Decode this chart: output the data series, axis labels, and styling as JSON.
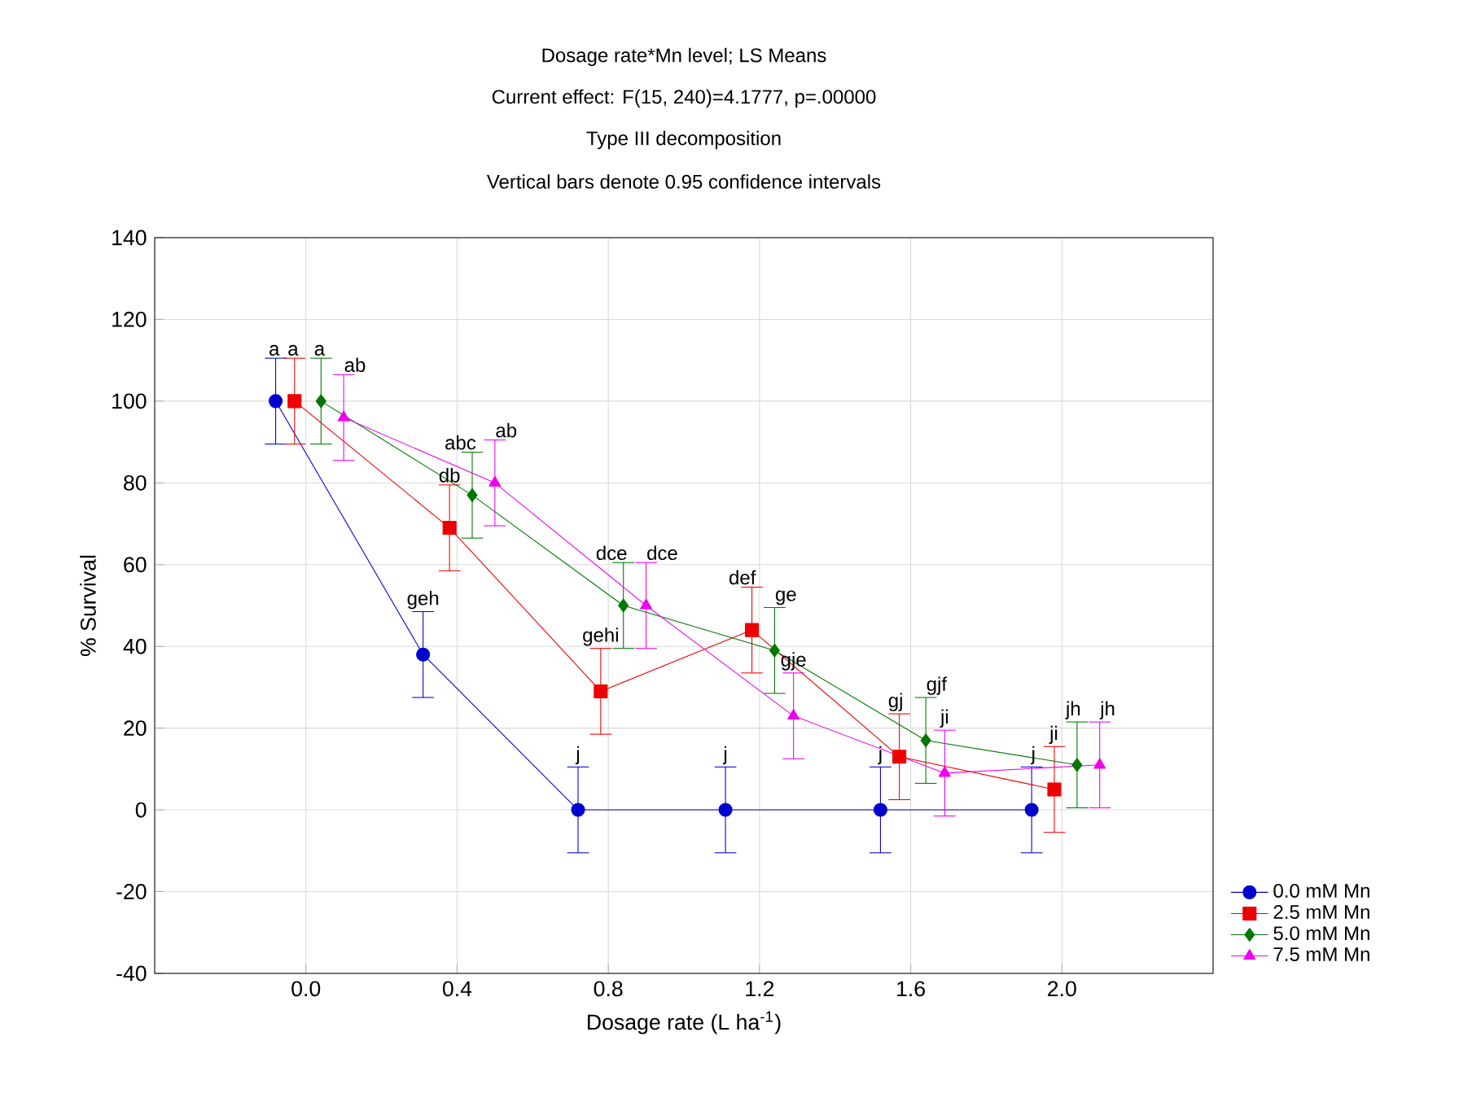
{
  "chart_data": {
    "type": "line",
    "title": "Dosage rate*Mn level; LS Means",
    "subtitle": "Current effect: F(15, 240)=4.1777, p=.00000",
    "xlabel": "Dosage rate (L ha$^{-1}$)",
    "ylabel": "% Survival",
    "xlim": [
      -0.4,
      2.4
    ],
    "xticks": [
      {
        "value": 0,
        "label": "0.0"
      },
      0.4,
      0.8,
      1.2,
      1.6,
      {
        "value": 2,
        "label": "2.0"
      }
    ],
    "ylim": [
      -40,
      140
    ],
    "yticks": [
      -40,
      -20,
      0,
      20,
      40,
      60,
      80,
      100,
      120,
      140
    ],
    "grid": true,
    "legend": "bottom right",
    "series": [
      {
        "name": "0.0 mM Mn",
        "color": "#0000cc",
        "marker": "circle",
        "x": [
          -0.08,
          0.31,
          0.72,
          1.11,
          1.52,
          1.92
        ],
        "values": [
          100,
          38,
          0,
          0,
          0,
          0
        ],
        "errors": [
          10.5,
          10.5,
          10.5,
          10.5,
          10.5,
          10.5
        ]
      },
      {
        "name": "2.5 mM Mn",
        "color": "#ee0000",
        "marker": "square",
        "x": [
          -0.03,
          0.38,
          0.78,
          1.18,
          1.57,
          1.98
        ],
        "values": [
          100,
          69,
          29,
          44,
          13,
          5
        ],
        "errors": [
          10.5,
          10.5,
          10.5,
          10.5,
          10.5,
          10.5
        ]
      },
      {
        "name": "5.0 mM Mn",
        "color": "#007700",
        "marker": "diamond",
        "x": [
          0.04,
          0.44,
          0.84,
          1.24,
          1.64,
          2.04
        ],
        "values": [
          100,
          77,
          50,
          39,
          17,
          11
        ],
        "errors": [
          10.5,
          10.5,
          10.5,
          10.5,
          10.5,
          10.5
        ]
      },
      {
        "name": "7.5 mM Mn",
        "color": "#ee00ee",
        "marker": "triangle",
        "x": [
          0.1,
          0.5,
          0.9,
          1.29,
          1.69,
          2.1
        ],
        "values": [
          96,
          80,
          50,
          23,
          9,
          11
        ],
        "errors": [
          10.5,
          10.5,
          10.5,
          10.5,
          10.5,
          10.5
        ]
      }
    ],
    "annotations": [
      "Type III decomposition",
      "Vertical bars denote 0.95 confidence intervals",
      {
        "text": "a",
        "x": -0.08,
        "y": 110.5
      },
      {
        "text": "geh",
        "x": 0.31,
        "y": 48.5
      },
      {
        "text": "j",
        "x": 0.72,
        "y": 10.5
      },
      {
        "text": "j",
        "x": 1.11,
        "y": 10.5
      },
      {
        "text": "j",
        "x": 1.52,
        "y": 10.5
      },
      {
        "text": "j",
        "x": 1.92,
        "y": 10.5
      },
      {
        "text": "a",
        "x": -0.03,
        "y": 110.5
      },
      {
        "text": "db",
        "x": 0.38,
        "y": 79.5
      },
      {
        "text": "gehi",
        "x": 0.78,
        "y": 39.5
      },
      {
        "text": "def",
        "x": 1.18,
        "y": 54.5
      },
      {
        "text": "gj",
        "x": 1.57,
        "y": 23.5
      },
      {
        "text": "ji",
        "x": 1.98,
        "y": 15.5
      },
      {
        "text": "a",
        "x": 0.04,
        "y": 110.5
      },
      {
        "text": "abc",
        "x": 0.44,
        "y": 87.5
      },
      {
        "text": "dce",
        "x": 0.84,
        "y": 60.5
      },
      {
        "text": "ge",
        "x": 1.24,
        "y": 49.5
      },
      {
        "text": "gjf",
        "x": 1.64,
        "y": 27.5
      },
      {
        "text": "jh",
        "x": 2.04,
        "y": 21.5
      },
      {
        "text": "ab",
        "x": 0.1,
        "y": 106.5
      },
      {
        "text": "ab",
        "x": 0.5,
        "y": 90.5
      },
      {
        "text": "dce",
        "x": 0.9,
        "y": 60.5
      },
      {
        "text": "gje",
        "x": 1.29,
        "y": 33.5
      },
      {
        "text": "ji",
        "x": 1.69,
        "y": 19.5
      },
      {
        "text": "jh",
        "x": 2.1,
        "y": 21.5
      }
    ]
  }
}
